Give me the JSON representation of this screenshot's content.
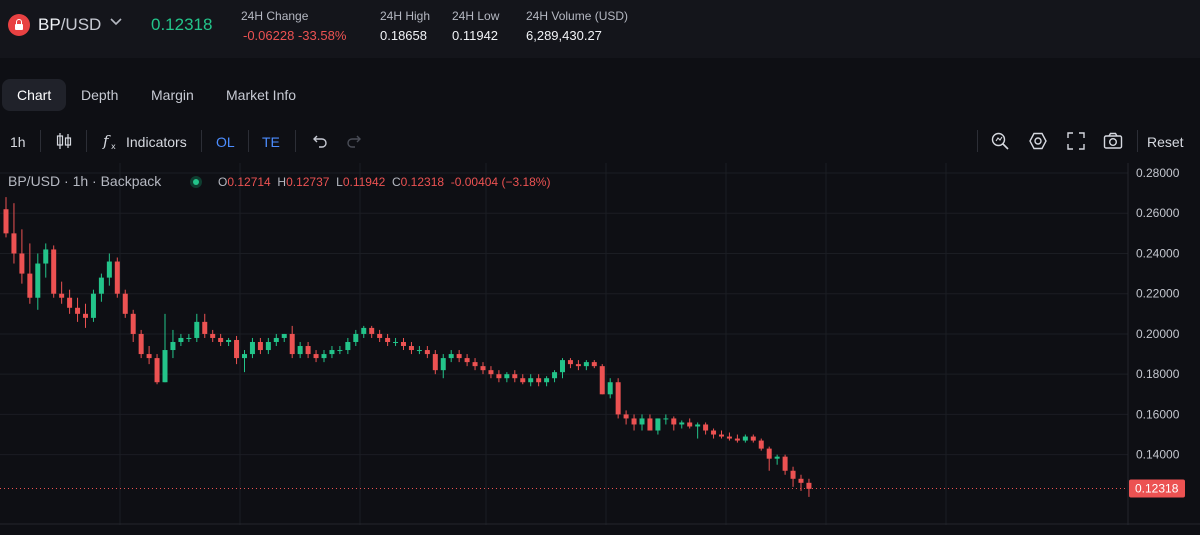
{
  "ticker": {
    "pair_base": "BP",
    "pair_quote": "/USD",
    "last_price": "0.12318",
    "change_label": "24H Change",
    "change_value": "-0.06228",
    "change_pct": "-33.58%",
    "high_label": "24H High",
    "high_value": "0.18658",
    "low_label": "24H Low",
    "low_value": "0.11942",
    "volume_label": "24H Volume (USD)",
    "volume_value": "6,289,430.27"
  },
  "tabs": [
    {
      "label": "Chart",
      "active": true
    },
    {
      "label": "Depth",
      "active": false
    },
    {
      "label": "Margin",
      "active": false
    },
    {
      "label": "Market Info",
      "active": false
    }
  ],
  "toolbar": {
    "interval": "1h",
    "indicators_label": "Indicators",
    "ol_label": "OL",
    "te_label": "TE",
    "reset_label": "Reset"
  },
  "legend": {
    "title": "BP/USD · 1h · Backpack",
    "o_key": "O",
    "o_val": "0.12714",
    "h_key": "H",
    "h_val": "0.12737",
    "l_key": "L",
    "l_val": "0.11942",
    "c_key": "C",
    "c_val": "0.12318",
    "change": "-0.00404 (−3.18%)"
  },
  "colors": {
    "up": "#23c48a",
    "down": "#ec5252",
    "background": "#0e0f14",
    "grid": "#1b1d23"
  },
  "chart_data": {
    "type": "candlestick",
    "y_ticks": [
      0.28,
      0.26,
      0.24,
      0.22,
      0.2,
      0.18,
      0.16,
      0.14
    ],
    "y_tick_labels": [
      "0.28000",
      "0.26000",
      "0.24000",
      "0.22000",
      "0.20000",
      "0.18000",
      "0.16000",
      "0.14000"
    ],
    "ylim": [
      0.11,
      0.281
    ],
    "current_price": 0.12318,
    "current_price_label": "0.12318",
    "candles": [
      [
        0.262,
        0.268,
        0.248,
        0.25
      ],
      [
        0.25,
        0.265,
        0.235,
        0.24
      ],
      [
        0.24,
        0.252,
        0.225,
        0.23
      ],
      [
        0.23,
        0.245,
        0.215,
        0.218
      ],
      [
        0.218,
        0.24,
        0.212,
        0.235
      ],
      [
        0.235,
        0.245,
        0.228,
        0.242
      ],
      [
        0.242,
        0.244,
        0.218,
        0.22
      ],
      [
        0.22,
        0.226,
        0.215,
        0.218
      ],
      [
        0.218,
        0.222,
        0.21,
        0.213
      ],
      [
        0.213,
        0.218,
        0.206,
        0.21
      ],
      [
        0.21,
        0.215,
        0.203,
        0.208
      ],
      [
        0.208,
        0.222,
        0.206,
        0.22
      ],
      [
        0.22,
        0.23,
        0.216,
        0.228
      ],
      [
        0.228,
        0.24,
        0.224,
        0.236
      ],
      [
        0.236,
        0.238,
        0.218,
        0.22
      ],
      [
        0.22,
        0.222,
        0.208,
        0.21
      ],
      [
        0.21,
        0.212,
        0.196,
        0.2
      ],
      [
        0.2,
        0.202,
        0.188,
        0.19
      ],
      [
        0.19,
        0.194,
        0.185,
        0.188
      ],
      [
        0.188,
        0.19,
        0.175,
        0.176
      ],
      [
        0.176,
        0.21,
        0.176,
        0.192
      ],
      [
        0.192,
        0.202,
        0.188,
        0.196
      ],
      [
        0.196,
        0.2,
        0.194,
        0.198
      ],
      [
        0.198,
        0.2,
        0.196,
        0.198
      ],
      [
        0.198,
        0.21,
        0.196,
        0.206
      ],
      [
        0.206,
        0.21,
        0.198,
        0.2
      ],
      [
        0.2,
        0.202,
        0.196,
        0.198
      ],
      [
        0.198,
        0.2,
        0.194,
        0.196
      ],
      [
        0.196,
        0.198,
        0.194,
        0.197
      ],
      [
        0.197,
        0.199,
        0.185,
        0.188
      ],
      [
        0.188,
        0.192,
        0.181,
        0.19
      ],
      [
        0.19,
        0.198,
        0.188,
        0.196
      ],
      [
        0.196,
        0.198,
        0.19,
        0.192
      ],
      [
        0.192,
        0.198,
        0.19,
        0.196
      ],
      [
        0.196,
        0.2,
        0.194,
        0.198
      ],
      [
        0.198,
        0.2,
        0.196,
        0.2
      ],
      [
        0.2,
        0.204,
        0.188,
        0.19
      ],
      [
        0.19,
        0.196,
        0.188,
        0.194
      ],
      [
        0.194,
        0.196,
        0.188,
        0.19
      ],
      [
        0.19,
        0.192,
        0.186,
        0.188
      ],
      [
        0.188,
        0.192,
        0.186,
        0.19
      ],
      [
        0.19,
        0.194,
        0.188,
        0.192
      ],
      [
        0.192,
        0.194,
        0.19,
        0.192
      ],
      [
        0.192,
        0.198,
        0.19,
        0.196
      ],
      [
        0.196,
        0.202,
        0.194,
        0.2
      ],
      [
        0.2,
        0.204,
        0.198,
        0.203
      ],
      [
        0.203,
        0.204,
        0.198,
        0.2
      ],
      [
        0.2,
        0.202,
        0.196,
        0.198
      ],
      [
        0.198,
        0.2,
        0.194,
        0.196
      ],
      [
        0.196,
        0.198,
        0.194,
        0.196
      ],
      [
        0.196,
        0.198,
        0.192,
        0.194
      ],
      [
        0.194,
        0.196,
        0.19,
        0.192
      ],
      [
        0.192,
        0.194,
        0.19,
        0.192
      ],
      [
        0.192,
        0.194,
        0.188,
        0.19
      ],
      [
        0.19,
        0.192,
        0.18,
        0.182
      ],
      [
        0.182,
        0.19,
        0.178,
        0.188
      ],
      [
        0.188,
        0.192,
        0.186,
        0.19
      ],
      [
        0.19,
        0.192,
        0.186,
        0.188
      ],
      [
        0.188,
        0.19,
        0.184,
        0.186
      ],
      [
        0.186,
        0.188,
        0.182,
        0.184
      ],
      [
        0.184,
        0.186,
        0.18,
        0.182
      ],
      [
        0.182,
        0.184,
        0.178,
        0.18
      ],
      [
        0.18,
        0.182,
        0.176,
        0.178
      ],
      [
        0.178,
        0.181,
        0.176,
        0.18
      ],
      [
        0.18,
        0.182,
        0.176,
        0.178
      ],
      [
        0.178,
        0.18,
        0.175,
        0.176
      ],
      [
        0.176,
        0.18,
        0.174,
        0.178
      ],
      [
        0.178,
        0.18,
        0.174,
        0.176
      ],
      [
        0.176,
        0.179,
        0.174,
        0.178
      ],
      [
        0.178,
        0.182,
        0.176,
        0.181
      ],
      [
        0.181,
        0.188,
        0.178,
        0.187
      ],
      [
        0.187,
        0.188,
        0.183,
        0.185
      ],
      [
        0.185,
        0.187,
        0.182,
        0.184
      ],
      [
        0.184,
        0.187,
        0.182,
        0.186
      ],
      [
        0.186,
        0.187,
        0.183,
        0.184
      ],
      [
        0.184,
        0.185,
        0.17,
        0.17
      ],
      [
        0.17,
        0.178,
        0.168,
        0.176
      ],
      [
        0.176,
        0.178,
        0.158,
        0.16
      ],
      [
        0.16,
        0.162,
        0.155,
        0.158
      ],
      [
        0.158,
        0.16,
        0.152,
        0.155
      ],
      [
        0.155,
        0.16,
        0.152,
        0.158
      ],
      [
        0.158,
        0.16,
        0.152,
        0.152
      ],
      [
        0.152,
        0.158,
        0.15,
        0.158
      ],
      [
        0.158,
        0.16,
        0.155,
        0.158
      ],
      [
        0.158,
        0.159,
        0.152,
        0.155
      ],
      [
        0.155,
        0.157,
        0.153,
        0.156
      ],
      [
        0.156,
        0.158,
        0.153,
        0.154
      ],
      [
        0.154,
        0.156,
        0.148,
        0.155
      ],
      [
        0.155,
        0.156,
        0.15,
        0.152
      ],
      [
        0.152,
        0.153,
        0.148,
        0.15
      ],
      [
        0.15,
        0.152,
        0.148,
        0.149
      ],
      [
        0.149,
        0.151,
        0.147,
        0.148
      ],
      [
        0.148,
        0.15,
        0.146,
        0.147
      ],
      [
        0.147,
        0.15,
        0.146,
        0.149
      ],
      [
        0.149,
        0.15,
        0.146,
        0.147
      ],
      [
        0.147,
        0.148,
        0.142,
        0.143
      ],
      [
        0.143,
        0.144,
        0.132,
        0.138
      ],
      [
        0.138,
        0.14,
        0.135,
        0.139
      ],
      [
        0.139,
        0.14,
        0.13,
        0.132
      ],
      [
        0.132,
        0.134,
        0.124,
        0.128
      ],
      [
        0.128,
        0.13,
        0.122,
        0.126
      ],
      [
        0.126,
        0.128,
        0.119,
        0.123
      ]
    ]
  }
}
